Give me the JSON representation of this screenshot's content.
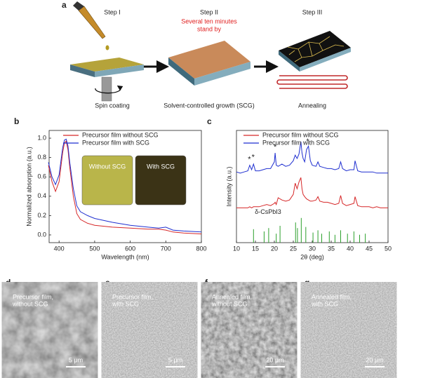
{
  "schematic": {
    "panel": "a",
    "steps": [
      {
        "title": "Step I",
        "caption": "Spin coating"
      },
      {
        "title": "Step II",
        "note": [
          "Several ten minutes",
          "stand by"
        ],
        "caption": "Solvent-controlled growth (SCG)"
      },
      {
        "title": "Step III",
        "caption": "Annealing"
      }
    ]
  },
  "chart_data": [
    {
      "type": "line",
      "panel": "b",
      "x_label": "Wavelength (nm)",
      "y_label": "Normalized absorption (a.u.)",
      "x": [
        370,
        380,
        390,
        400,
        410,
        415,
        420,
        425,
        430,
        440,
        450,
        460,
        480,
        500,
        550,
        600,
        650,
        680,
        700,
        720,
        750,
        800
      ],
      "series": [
        {
          "name": "Precursor film without SCG",
          "color": "#d62728",
          "values": [
            0.72,
            0.55,
            0.45,
            0.55,
            0.85,
            0.95,
            0.97,
            0.88,
            0.7,
            0.4,
            0.22,
            0.16,
            0.12,
            0.1,
            0.08,
            0.07,
            0.06,
            0.06,
            0.05,
            0.03,
            0.02,
            0.01
          ]
        },
        {
          "name": "Precursor film with SCG",
          "color": "#1f2fd0",
          "values": [
            0.75,
            0.6,
            0.52,
            0.62,
            0.9,
            0.98,
            0.99,
            0.92,
            0.75,
            0.48,
            0.3,
            0.24,
            0.2,
            0.17,
            0.13,
            0.1,
            0.08,
            0.07,
            0.08,
            0.05,
            0.04,
            0.03
          ]
        }
      ],
      "xlim": [
        372,
        800
      ],
      "xticks": [
        400,
        500,
        600,
        700,
        800
      ],
      "ylim": [
        -0.08,
        1.08
      ],
      "yticks": [
        {
          "value": 0,
          "label": "0.0"
        },
        {
          "value": 0.2,
          "label": "0.2"
        },
        {
          "value": 0.4,
          "label": "0.4"
        },
        {
          "value": 0.6,
          "label": "0.6"
        },
        {
          "value": 0.8,
          "label": "0.8"
        },
        {
          "value": 1,
          "label": "1.0"
        }
      ],
      "inset_labels": [
        "Without SCG",
        "With SCG"
      ]
    },
    {
      "type": "line",
      "panel": "c",
      "x_label": "2θ (deg)",
      "y_label": "Intensity (a.u.)",
      "x": [
        10,
        11,
        12,
        13,
        13.5,
        14,
        14.5,
        15,
        16,
        17,
        18,
        19,
        20,
        20.2,
        20.5,
        21,
        22,
        23,
        24,
        25,
        25.5,
        26,
        26.5,
        27,
        27.3,
        27.6,
        28,
        28.5,
        29,
        29.5,
        30,
        31,
        31.5,
        32,
        33,
        34,
        35,
        36,
        37,
        37.5,
        38,
        39,
        40,
        41,
        41.3,
        42,
        43,
        44,
        45,
        46,
        47,
        48,
        49,
        50
      ],
      "series": [
        {
          "name": "Precursor film without SCG",
          "color": "#d62728",
          "values": [
            3.1,
            3.1,
            3.1,
            3.1,
            3.2,
            3.1,
            3.2,
            3.2,
            3.2,
            3.3,
            3.4,
            3.3,
            3.5,
            3.6,
            3.4,
            4.0,
            3.8,
            3.7,
            3.8,
            4.3,
            5.3,
            4.8,
            5.4,
            5.8,
            4.8,
            4.3,
            4.1,
            3.9,
            3.8,
            3.7,
            3.7,
            3.8,
            4.1,
            3.7,
            3.6,
            3.6,
            3.5,
            3.4,
            3.5,
            4.2,
            3.5,
            3.3,
            3.4,
            3.5,
            4.1,
            3.3,
            3.2,
            3.2,
            3.2,
            3.1,
            3.2,
            3.1,
            3.1,
            3.1
          ]
        },
        {
          "name": "Precursor film with SCG",
          "color": "#1f2fd0",
          "values": [
            6.3,
            6.2,
            6.3,
            6.4,
            6.9,
            6.5,
            7.0,
            6.4,
            6.4,
            6.5,
            6.6,
            6.6,
            7.2,
            8.0,
            6.9,
            6.8,
            7.0,
            6.8,
            6.9,
            7.3,
            7.8,
            7.5,
            7.9,
            9.0,
            8.0,
            7.5,
            7.2,
            8.3,
            8.6,
            7.3,
            6.9,
            6.8,
            7.2,
            6.8,
            6.7,
            6.6,
            6.6,
            6.5,
            6.6,
            7.2,
            6.6,
            6.4,
            6.5,
            6.5,
            7.3,
            6.4,
            6.3,
            6.3,
            6.3,
            6.3,
            6.2,
            6.2,
            6.2,
            6.2
          ]
        },
        {
          "name": "δ-CsPbI3",
          "type": "stem",
          "color": "#2ca02c",
          "x": [
            14.5,
            17.3,
            18.5,
            20.5,
            21.5,
            25.6,
            26.1,
            27.1,
            28.3,
            30.2,
            31.5,
            32.5,
            34.5,
            36,
            37.5,
            39.3,
            41,
            42.5,
            44
          ],
          "values": [
            1.2,
            1.0,
            1.3,
            0.8,
            1.5,
            1.8,
            1.3,
            2.2,
            1.4,
            0.9,
            1.1,
            0.8,
            1.0,
            0.7,
            1.1,
            0.8,
            1.0,
            0.7,
            0.8
          ]
        }
      ],
      "xlim": [
        10,
        50
      ],
      "xticks": [
        10,
        15,
        20,
        25,
        30,
        35,
        40,
        45,
        50
      ],
      "ylim": [
        0,
        10
      ],
      "annotations": [
        {
          "text": "*",
          "x": 13.4,
          "y": 7.4
        },
        {
          "text": "*",
          "x": 14.4,
          "y": 7.6
        },
        {
          "text": "*",
          "x": 20.2,
          "y": 8.5
        },
        {
          "text": "*",
          "x": 28.8,
          "y": 9.0
        }
      ]
    }
  ],
  "micrographs": [
    {
      "panel": "d",
      "label": [
        "Precursor film,",
        "without SCG"
      ],
      "scale_bar": "5 μm"
    },
    {
      "panel": "e",
      "label": [
        "Precursor film,",
        "with SCG"
      ],
      "scale_bar": "5 μm"
    },
    {
      "panel": "f",
      "label": [
        "Annealed film,",
        "without SCG"
      ],
      "scale_bar": "20 μm"
    },
    {
      "panel": "g",
      "label": [
        "Annealed film,",
        "with SCG"
      ],
      "scale_bar": "20 μm"
    }
  ]
}
